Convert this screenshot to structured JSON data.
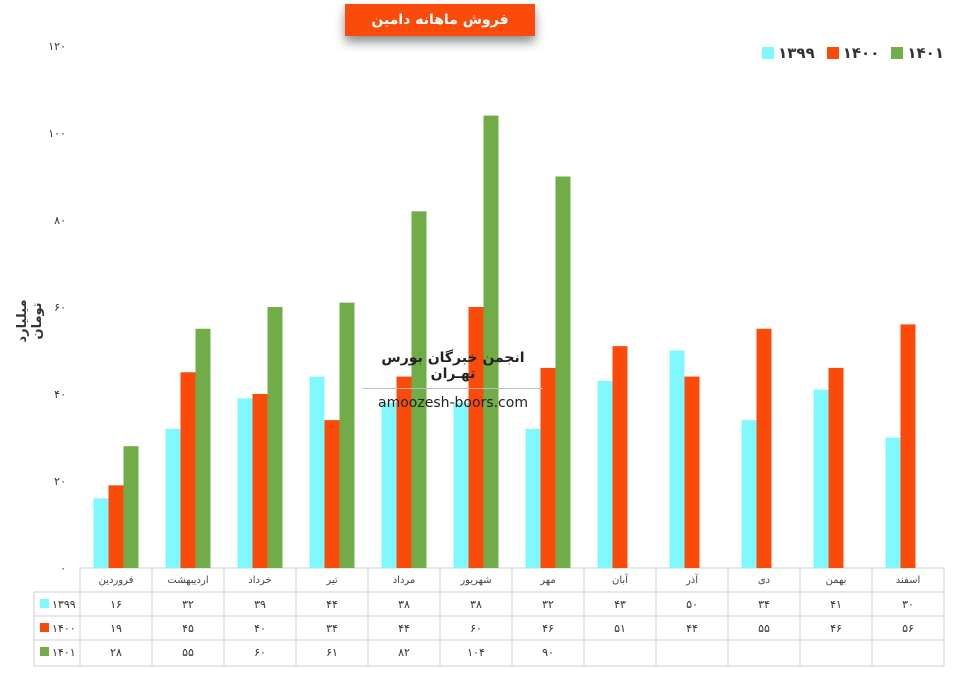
{
  "chart_data": {
    "type": "bar",
    "title": "فروش ماهانه دامین",
    "ylabel": "میلیارد تومان",
    "ylim": [
      0,
      120
    ],
    "yticks": [
      "۰",
      "۲۰",
      "۴۰",
      "۶۰",
      "۸۰",
      "۱۰۰",
      "۱۲۰"
    ],
    "yticks_values": [
      0,
      20,
      40,
      60,
      80,
      100,
      120
    ],
    "legend_position": "top-right",
    "grid": false,
    "categories": [
      "فروردین",
      "اردیبهشت",
      "خرداد",
      "تیر",
      "مرداد",
      "شهریور",
      "مهر",
      "آبان",
      "آذر",
      "دی",
      "بهمن",
      "اسفند"
    ],
    "series": [
      {
        "name": "۱۳۹۹",
        "color": "#7ff8ff",
        "values": [
          16,
          32,
          39,
          44,
          38,
          38,
          32,
          43,
          50,
          34,
          41,
          30
        ],
        "labels": [
          "۱۶",
          "۳۲",
          "۳۹",
          "۴۴",
          "۳۸",
          "۳۸",
          "۳۲",
          "۴۳",
          "۵۰",
          "۳۴",
          "۴۱",
          "۳۰"
        ]
      },
      {
        "name": "۱۴۰۰",
        "color": "#fa4b0a",
        "values": [
          19,
          45,
          40,
          34,
          44,
          60,
          46,
          51,
          44,
          55,
          46,
          56
        ],
        "labels": [
          "۱۹",
          "۴۵",
          "۴۰",
          "۳۴",
          "۴۴",
          "۶۰",
          "۴۶",
          "۵۱",
          "۴۴",
          "۵۵",
          "۴۶",
          "۵۶"
        ]
      },
      {
        "name": "۱۴۰۱",
        "color": "#70ad47",
        "values": [
          28,
          55,
          60,
          61,
          82,
          104,
          90,
          null,
          null,
          null,
          null,
          null
        ],
        "labels": [
          "۲۸",
          "۵۵",
          "۶۰",
          "۶۱",
          "۸۲",
          "۱۰۴",
          "۹۰",
          "",
          "",
          "",
          "",
          ""
        ]
      }
    ]
  },
  "watermark": {
    "name": "انجمن خبرگان بورس تهـران",
    "site": "amoozesh-boors.com"
  }
}
